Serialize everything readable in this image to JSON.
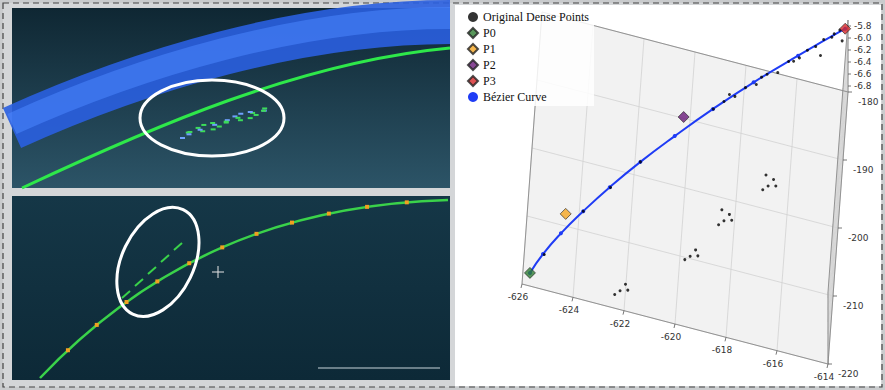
{
  "chart_data": {
    "type": "scatter3d",
    "xlim": [
      -626,
      -614
    ],
    "ylim": [
      -220,
      -180
    ],
    "zlim": [
      -6.9,
      -5.7
    ],
    "xticks": [
      -626,
      -624,
      -622,
      -620,
      -618,
      -616,
      -614
    ],
    "yticks": [
      -220,
      -210,
      -200,
      -190,
      -180
    ],
    "zticks": [
      -6.8,
      -6.6,
      -6.4,
      -6.2,
      {
        "value": -6,
        "label": "-6.0"
      },
      -5.8
    ],
    "grid": true,
    "legend": "top-left",
    "series": [
      {
        "name": "Original Dense Points",
        "type": "scatter",
        "marker": "circle",
        "color": "#000000",
        "x": [
          -625.2,
          -623.8,
          -622.8,
          -621.7,
          -619.0,
          -618.6,
          -618.2,
          -617.8,
          -617.4,
          -617.0,
          -616.6,
          -616.2,
          -615.8,
          -615.5,
          -615.2,
          -614.9,
          -614.6,
          -614.3,
          -614.2,
          -615.0,
          -616.0,
          -617.2,
          -618.4,
          -614.5,
          -622.2,
          -622.0,
          -622.4,
          -621.9,
          -619.6,
          -619.4,
          -619.8,
          -619.3,
          -618.4,
          -618.2,
          -618.6,
          -618.1,
          -618.5,
          -616.8,
          -616.6,
          -617.0,
          -616.5,
          -616.9
        ],
        "y": [
          -216.3,
          -209.7,
          -206.2,
          -202.5,
          -194.3,
          -193.4,
          -192.0,
          -191.2,
          -190.0,
          -188.8,
          -187.9,
          -186.5,
          -185.4,
          -184.6,
          -183.5,
          -182.7,
          -181.8,
          -180.9,
          -181.5,
          -184.0,
          -186.8,
          -189.6,
          -192.7,
          -182.0,
          -217.7,
          -217.0,
          -218.2,
          -217.5,
          -210.1,
          -209.4,
          -210.6,
          -210.0,
          -203.7,
          -203.0,
          -204.2,
          -203.5,
          -202.8,
          -197.0,
          -196.3,
          -197.5,
          -196.9,
          -196.1
        ],
        "z": [
          -6.74,
          -6.61,
          -6.5,
          -6.37,
          -6.12,
          -6.05,
          -6.08,
          -5.98,
          -6.02,
          -5.94,
          -5.97,
          -5.9,
          -5.92,
          -5.85,
          -5.88,
          -5.82,
          -5.85,
          -5.8,
          -5.9,
          -5.95,
          -5.84,
          -5.92,
          -5.99,
          -5.76,
          -6.85,
          -6.8,
          -6.88,
          -6.83,
          -6.85,
          -6.8,
          -6.87,
          -6.82,
          -6.85,
          -6.8,
          -6.88,
          -6.83,
          -6.78,
          -6.85,
          -6.8,
          -6.88,
          -6.83,
          -6.78
        ]
      },
      {
        "name": "P0",
        "type": "scatter",
        "marker": "diamond",
        "color": "#2e7d32",
        "x": [
          -625.7
        ],
        "y": [
          -219.4
        ],
        "z": [
          -6.75
        ]
      },
      {
        "name": "P1",
        "type": "scatter",
        "marker": "diamond",
        "color": "#f5a623",
        "x": [
          -624.5
        ],
        "y": [
          -209.1
        ],
        "z": [
          -6.8
        ]
      },
      {
        "name": "P2",
        "type": "scatter",
        "marker": "diamond",
        "color": "#6a1b7a",
        "x": [
          -620.1
        ],
        "y": [
          -197.6
        ],
        "z": [
          -6.0
        ]
      },
      {
        "name": "P3",
        "type": "scatter",
        "marker": "diamond",
        "color": "#d62728",
        "x": [
          -614.1
        ],
        "y": [
          -180.5
        ],
        "z": [
          -5.8
        ]
      },
      {
        "name": "Bézier Curve",
        "type": "line",
        "marker": "circle",
        "color": "#1f3cf5",
        "x": [
          -625.7,
          -625.25,
          -624.61,
          -623.8,
          -622.83,
          -621.7,
          -620.43,
          -619.02,
          -617.5,
          -615.85,
          -614.1
        ],
        "y": [
          -219.4,
          -216.27,
          -213.04,
          -209.69,
          -206.18,
          -202.5,
          -198.61,
          -194.5,
          -190.12,
          -185.47,
          -180.5
        ],
        "z": [
          -6.75,
          -6.74,
          -6.69,
          -6.61,
          -6.5,
          -6.37,
          -6.24,
          -6.1,
          -5.98,
          -5.88,
          -5.8
        ]
      }
    ]
  }
}
